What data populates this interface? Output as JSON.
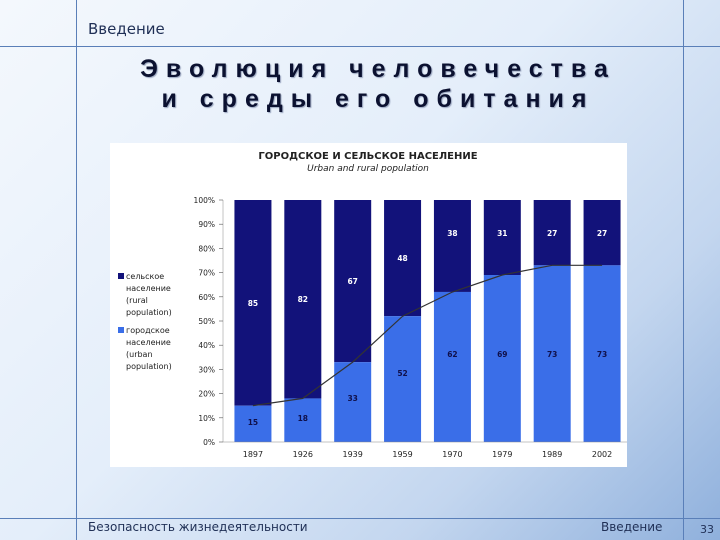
{
  "slide": {
    "section": "Введение",
    "title_line1": "Эволюция человечества",
    "title_line2": "и среды его обитания",
    "footer_left": "Безопасность жизнедеятельности",
    "footer_right": "Введение",
    "page_number": "33"
  },
  "colors": {
    "rural": "#12127a",
    "urban": "#3a6ee8",
    "line": "#333333"
  },
  "chart_data": {
    "type": "bar",
    "stacked": true,
    "title": "ГОРОДСКОЕ И СЕЛЬСКОЕ НАСЕЛЕНИЕ",
    "subtitle": "Urban and rural population",
    "categories": [
      "1897",
      "1926",
      "1939",
      "1959",
      "1970",
      "1979",
      "1989",
      "2002"
    ],
    "series": [
      {
        "name": "городское население (urban population)",
        "values": [
          15,
          18,
          33,
          52,
          62,
          69,
          73,
          73
        ]
      },
      {
        "name": "сельское население (rural population)",
        "values": [
          85,
          82,
          67,
          48,
          38,
          31,
          27,
          27
        ]
      }
    ],
    "y_ticks": [
      "0%",
      "10%",
      "20%",
      "30%",
      "40%",
      "50%",
      "60%",
      "70%",
      "80%",
      "90%",
      "100%"
    ],
    "ylim": [
      0,
      100
    ],
    "legend_position": "left",
    "legend": {
      "rural": [
        "сельское",
        "население",
        "(rural",
        "population)"
      ],
      "urban": [
        "городское",
        "население",
        "(urban",
        "population)"
      ]
    },
    "trend_line": "urban share",
    "grid": false
  }
}
